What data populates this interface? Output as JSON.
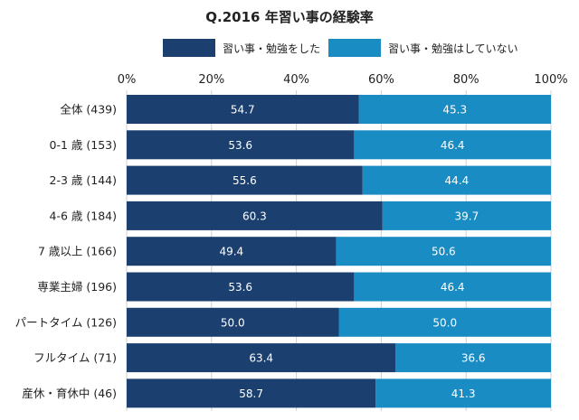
{
  "chart_data": {
    "type": "bar",
    "orientation": "horizontal",
    "stacked": true,
    "title": "Q.2016 年習い事の経験率",
    "categories": [
      "全体 (439)",
      "0-1 歳 (153)",
      "2-3 歳 (144)",
      "4-6 歳 (184)",
      "7 歳以上 (166)",
      "専業主婦 (196)",
      "パートタイム (126)",
      "フルタイム (71)",
      "産休・育休中 (46)"
    ],
    "series": [
      {
        "name": "習い事・勉強をした",
        "color": "#1b3f6e",
        "values": [
          54.7,
          53.6,
          55.6,
          60.3,
          49.4,
          53.6,
          50.0,
          63.4,
          58.7
        ]
      },
      {
        "name": "習い事・勉強はしていない",
        "color": "#1a8cc4",
        "values": [
          45.3,
          46.4,
          44.4,
          39.7,
          50.6,
          46.4,
          50.0,
          36.6,
          41.3
        ]
      }
    ],
    "xaxis": {
      "ticks": [
        "0%",
        "20%",
        "40%",
        "60%",
        "80%",
        "100%"
      ],
      "range": [
        0,
        100
      ]
    },
    "legend_position": "top"
  }
}
